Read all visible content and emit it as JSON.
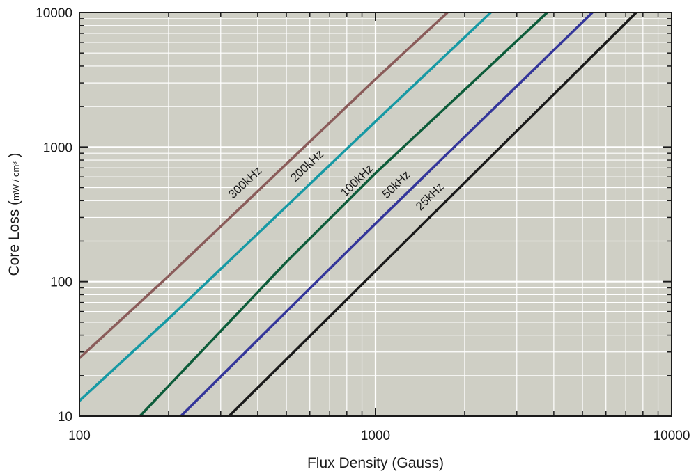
{
  "chart_data": {
    "type": "line",
    "title": "",
    "xlabel": "Flux Density (Gauss)",
    "ylabel_main": "Core Loss (",
    "ylabel_unit": "mW / cm³",
    "ylabel_close": " )",
    "x_scale": "log",
    "y_scale": "log",
    "xlim": [
      100,
      10000
    ],
    "ylim": [
      10,
      10000
    ],
    "x_ticks": [
      100,
      1000,
      10000
    ],
    "x_tick_labels": [
      "100",
      "1000",
      "10000"
    ],
    "y_ticks": [
      10,
      100,
      1000,
      10000
    ],
    "y_tick_labels": [
      "10",
      "100",
      "1000",
      "10000"
    ],
    "grid": true,
    "legend": "inline-labels",
    "colors": {
      "plot_background": "#cfcfc5",
      "grid": "#ffffff",
      "frame": "#1a1a1a"
    },
    "series": [
      {
        "name": "300kHz",
        "color": "#8a5c5a",
        "x": [
          100,
          200,
          1000,
          1750
        ],
        "y": [
          27,
          110,
          3200,
          10000
        ]
      },
      {
        "name": "200kHz",
        "color": "#1799a4",
        "x": [
          100,
          200,
          1000,
          2450
        ],
        "y": [
          13,
          53,
          1550,
          10000
        ]
      },
      {
        "name": "100kHz",
        "color": "#0d5c3a",
        "x": [
          160,
          500,
          1000,
          3800
        ],
        "y": [
          10,
          140,
          640,
          10000
        ]
      },
      {
        "name": "50kHz",
        "color": "#34369a",
        "x": [
          220,
          500,
          1000,
          5400
        ],
        "y": [
          10,
          60,
          270,
          10000
        ]
      },
      {
        "name": "25kHz",
        "color": "#1a1a1a",
        "x": [
          320,
          1000,
          7600
        ],
        "y": [
          10,
          120,
          10000
        ]
      }
    ]
  }
}
